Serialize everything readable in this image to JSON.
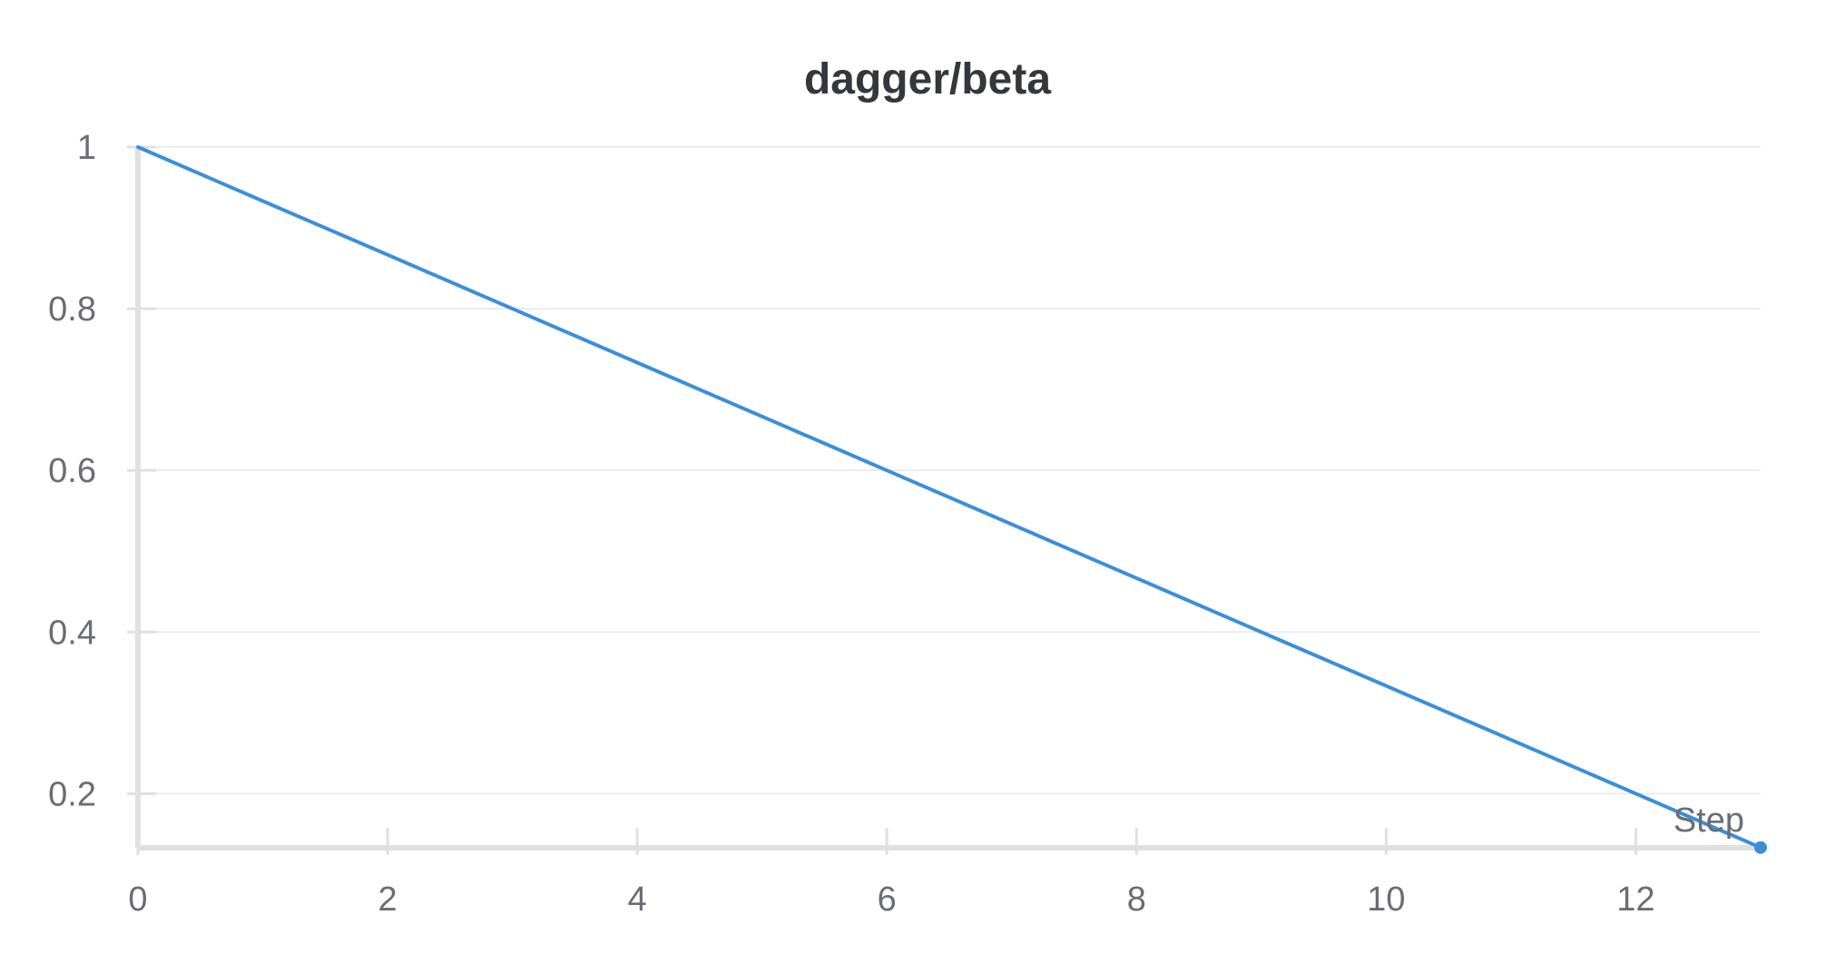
{
  "chart_data": {
    "type": "line",
    "title": "dagger/beta",
    "xlabel": "Step",
    "ylabel": "",
    "xlim": [
      0,
      13
    ],
    "ylim": [
      0.133,
      1
    ],
    "x_ticks": [
      0,
      2,
      4,
      6,
      8,
      10,
      12
    ],
    "y_ticks": [
      0.2,
      0.4,
      0.6,
      0.8,
      1
    ],
    "y_tick_labels": [
      "0.2",
      "0.4",
      "0.6",
      "0.8",
      "1"
    ],
    "x_tick_labels": [
      "0",
      "2",
      "4",
      "6",
      "8",
      "10",
      "12"
    ],
    "grid": true,
    "series": [
      {
        "color": "#3b8fd8",
        "x": [
          0,
          1,
          2,
          3,
          4,
          5,
          6,
          7,
          8,
          9,
          10,
          11,
          12,
          13
        ],
        "y": [
          1.0,
          0.9333,
          0.8667,
          0.8,
          0.7333,
          0.6667,
          0.6,
          0.5333,
          0.4667,
          0.4,
          0.3333,
          0.2667,
          0.2,
          0.1333
        ]
      }
    ]
  }
}
